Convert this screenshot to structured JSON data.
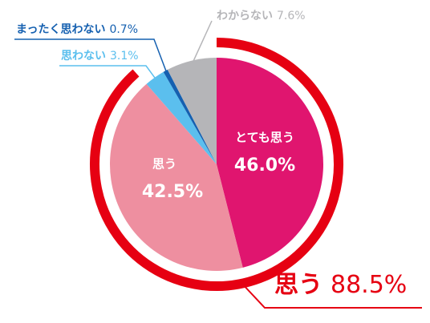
{
  "chart_data": {
    "type": "pie",
    "categories": [
      "とても思う",
      "思う",
      "思わない",
      "まったく思わない",
      "わからない"
    ],
    "values": [
      46.0,
      42.5,
      3.1,
      0.7,
      7.6
    ],
    "value_labels": [
      "46.0%",
      "42.5%",
      "3.1%",
      "0.7%",
      "7.6%"
    ],
    "colors": [
      "#e0156f",
      "#ee8fa0",
      "#5bbfee",
      "#1560b0",
      "#b5b5b8"
    ],
    "annotation": {
      "label": "思う",
      "value": 88.5,
      "value_label": "88.5%",
      "color": "#e60012"
    }
  }
}
